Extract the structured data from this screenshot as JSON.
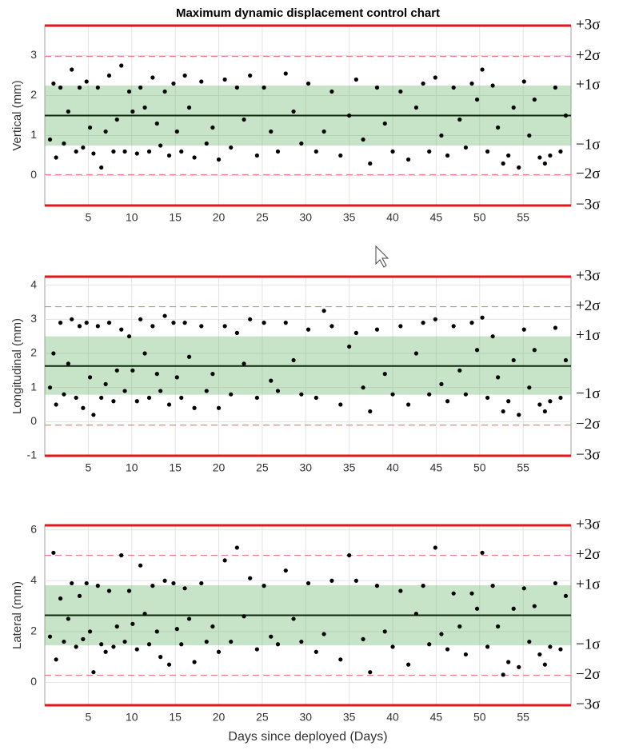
{
  "chart_data": [
    {
      "type": "scatter",
      "title": "Maximum dynamic displacement control chart",
      "ylabel": "Vertical (mm)",
      "color": "#000000",
      "xlim": [
        0,
        60.5
      ],
      "xticks": [
        5,
        10,
        15,
        20,
        25,
        30,
        35,
        40,
        45,
        50,
        55
      ],
      "ylim": [
        -0.75,
        3.75
      ],
      "yticks": [
        0,
        1,
        2,
        3
      ],
      "grid": true,
      "center": 1.5,
      "limits": [
        {
          "label": "+3σ",
          "value": 3.75
        },
        {
          "label": "+2σ",
          "value": 2.98
        },
        {
          "label": "+1σ",
          "value": 2.25
        },
        {
          "label": "−1σ",
          "value": 0.75
        },
        {
          "label": "−2σ",
          "value": 0.02
        },
        {
          "label": "−3σ",
          "value": -0.75
        }
      ],
      "x": [
        0.6,
        1,
        1.3,
        1.8,
        2.2,
        2.7,
        3.1,
        3.6,
        4,
        4.4,
        4.8,
        5.2,
        5.6,
        6.1,
        6.5,
        7,
        7.4,
        7.9,
        8.3,
        8.8,
        9.2,
        9.7,
        10.1,
        10.6,
        11,
        11.5,
        12,
        12.4,
        12.9,
        13.3,
        13.8,
        14.3,
        14.8,
        15.2,
        15.7,
        16.1,
        16.6,
        17.2,
        18,
        18.6,
        19.3,
        20,
        20.7,
        21.4,
        22.1,
        22.9,
        23.6,
        24.4,
        25.2,
        26,
        26.8,
        27.7,
        28.6,
        29.5,
        30.3,
        31.2,
        32.1,
        33,
        34,
        35,
        35.8,
        36.6,
        37.4,
        38.2,
        39.1,
        40,
        40.9,
        41.8,
        42.7,
        43.5,
        44.2,
        44.9,
        45.6,
        46.3,
        47,
        47.7,
        48.4,
        49.1,
        49.7,
        50.3,
        50.9,
        51.5,
        52.1,
        52.7,
        53.3,
        53.9,
        54.5,
        55.1,
        55.7,
        56.3,
        56.9,
        57.5,
        58.1,
        58.7,
        59.3,
        59.9
      ],
      "values": [
        0.9,
        2.3,
        0.45,
        2.2,
        0.8,
        1.6,
        2.65,
        0.6,
        2.2,
        0.7,
        2.35,
        1.2,
        0.55,
        2.2,
        0.2,
        1.1,
        2.5,
        0.6,
        1.4,
        2.75,
        0.6,
        2.1,
        1.6,
        0.55,
        2.2,
        1.7,
        0.6,
        2.45,
        1.3,
        0.75,
        2.1,
        0.5,
        2.3,
        1.1,
        0.6,
        2.5,
        1.7,
        0.45,
        2.35,
        0.8,
        1.2,
        0.4,
        2.4,
        0.7,
        2.2,
        1.4,
        2.5,
        0.5,
        2.2,
        1.1,
        0.6,
        2.55,
        1.6,
        0.8,
        2.3,
        0.6,
        1.1,
        2.1,
        0.5,
        1.5,
        2.4,
        0.9,
        0.3,
        2.2,
        1.3,
        0.6,
        2.1,
        0.4,
        1.7,
        2.3,
        0.6,
        2.45,
        1.0,
        0.5,
        2.2,
        1.4,
        0.7,
        2.3,
        1.9,
        2.65,
        0.6,
        2.25,
        1.2,
        0.3,
        0.5,
        1.7,
        0.2,
        2.35,
        1.0,
        1.9,
        0.45,
        0.3,
        0.5,
        2.2,
        0.6,
        1.5
      ]
    },
    {
      "type": "scatter",
      "ylabel": "Longitudinal (mm)",
      "color": "#000000",
      "xlim": [
        0,
        60.5
      ],
      "xticks": [
        5,
        10,
        15,
        20,
        25,
        30,
        35,
        40,
        45,
        50,
        55
      ],
      "ylim": [
        -1,
        4.25
      ],
      "yticks": [
        -1,
        0,
        1,
        2,
        3,
        4
      ],
      "grid": true,
      "center": 1.63,
      "limits": [
        {
          "label": "+3σ",
          "value": 4.25
        },
        {
          "label": "+2σ",
          "value": 3.37
        },
        {
          "label": "+1σ",
          "value": 2.5
        },
        {
          "label": "−1σ",
          "value": 0.79
        },
        {
          "label": "−2σ",
          "value": -0.1
        },
        {
          "label": "−3σ",
          "value": -1
        }
      ],
      "x": [
        0.6,
        1,
        1.3,
        1.8,
        2.2,
        2.7,
        3.1,
        3.6,
        4,
        4.4,
        4.8,
        5.2,
        5.6,
        6.1,
        6.5,
        7,
        7.4,
        7.9,
        8.3,
        8.8,
        9.2,
        9.7,
        10.1,
        10.6,
        11,
        11.5,
        12,
        12.4,
        12.9,
        13.3,
        13.8,
        14.3,
        14.8,
        15.2,
        15.7,
        16.1,
        16.6,
        17.2,
        18,
        18.6,
        19.3,
        20,
        20.7,
        21.4,
        22.1,
        22.9,
        23.6,
        24.4,
        25.2,
        26,
        26.8,
        27.7,
        28.6,
        29.5,
        30.3,
        31.2,
        32.1,
        33,
        34,
        35,
        35.8,
        36.6,
        37.4,
        38.2,
        39.1,
        40,
        40.9,
        41.8,
        42.7,
        43.5,
        44.2,
        44.9,
        45.6,
        46.3,
        47,
        47.7,
        48.4,
        49.1,
        49.7,
        50.3,
        50.9,
        51.5,
        52.1,
        52.7,
        53.3,
        53.9,
        54.5,
        55.1,
        55.7,
        56.3,
        56.9,
        57.5,
        58.1,
        58.7,
        59.3,
        59.9
      ],
      "values": [
        1.0,
        2.0,
        0.5,
        2.9,
        0.8,
        1.7,
        3.0,
        0.7,
        2.8,
        0.4,
        2.9,
        1.3,
        0.2,
        2.8,
        0.7,
        1.1,
        2.9,
        0.6,
        1.5,
        2.7,
        0.9,
        2.5,
        1.5,
        0.6,
        3.0,
        2.0,
        0.7,
        2.8,
        1.4,
        0.9,
        3.1,
        0.5,
        2.9,
        1.3,
        0.7,
        2.9,
        1.9,
        0.4,
        2.8,
        0.9,
        1.4,
        0.4,
        2.8,
        0.8,
        2.6,
        1.7,
        3.0,
        0.7,
        2.9,
        1.2,
        0.9,
        2.9,
        1.8,
        0.8,
        2.7,
        0.7,
        3.25,
        2.8,
        0.5,
        2.2,
        2.6,
        1.0,
        0.3,
        2.7,
        1.4,
        0.8,
        2.8,
        0.5,
        2.0,
        2.9,
        0.8,
        3.0,
        1.1,
        0.6,
        2.8,
        1.5,
        0.8,
        2.9,
        2.1,
        3.05,
        0.7,
        2.5,
        1.3,
        0.3,
        0.6,
        1.8,
        0.2,
        2.7,
        1.0,
        2.1,
        0.5,
        0.3,
        0.6,
        2.75,
        0.7,
        1.8
      ]
    },
    {
      "type": "scatter",
      "ylabel": "Lateral (mm)",
      "xlabel": "Days since deployed (Days)",
      "color": "#000000",
      "xlim": [
        0,
        60.5
      ],
      "xticks": [
        5,
        10,
        15,
        20,
        25,
        30,
        35,
        40,
        45,
        50,
        55
      ],
      "ylim": [
        -0.9,
        6.18
      ],
      "yticks": [
        0,
        2,
        4,
        6
      ],
      "grid": true,
      "center": 2.64,
      "limits": [
        {
          "label": "+3σ",
          "value": 6.18
        },
        {
          "label": "+2σ",
          "value": 5.0
        },
        {
          "label": "+1σ",
          "value": 3.82
        },
        {
          "label": "−1σ",
          "value": 1.46
        },
        {
          "label": "−2σ",
          "value": 0.28
        },
        {
          "label": "−3σ",
          "value": -0.9
        }
      ],
      "x": [
        0.6,
        1,
        1.3,
        1.8,
        2.2,
        2.7,
        3.1,
        3.6,
        4,
        4.4,
        4.8,
        5.2,
        5.6,
        6.1,
        6.5,
        7,
        7.4,
        7.9,
        8.3,
        8.8,
        9.2,
        9.7,
        10.1,
        10.6,
        11,
        11.5,
        12,
        12.4,
        12.9,
        13.3,
        13.8,
        14.3,
        14.8,
        15.2,
        15.7,
        16.1,
        16.6,
        17.2,
        18,
        18.6,
        19.3,
        20,
        20.7,
        21.4,
        22.1,
        22.9,
        23.6,
        24.4,
        25.2,
        26,
        26.8,
        27.7,
        28.6,
        29.5,
        30.3,
        31.2,
        32.1,
        33,
        34,
        35,
        35.8,
        36.6,
        37.4,
        38.2,
        39.1,
        40,
        40.9,
        41.8,
        42.7,
        43.5,
        44.2,
        44.9,
        45.6,
        46.3,
        47,
        47.7,
        48.4,
        49.1,
        49.7,
        50.3,
        50.9,
        51.5,
        52.1,
        52.7,
        53.3,
        53.9,
        54.5,
        55.1,
        55.7,
        56.3,
        56.9,
        57.5,
        58.1,
        58.7,
        59.3,
        59.9
      ],
      "values": [
        1.8,
        5.1,
        0.9,
        3.3,
        1.6,
        2.5,
        3.9,
        1.4,
        3.4,
        1.7,
        3.9,
        2.0,
        0.4,
        3.8,
        1.5,
        1.2,
        3.6,
        1.4,
        2.2,
        5.0,
        1.6,
        3.6,
        2.3,
        1.3,
        4.6,
        2.7,
        1.5,
        3.8,
        2.0,
        1.0,
        4.0,
        0.7,
        3.9,
        2.1,
        1.5,
        3.7,
        2.5,
        0.8,
        3.9,
        1.6,
        2.2,
        1.2,
        4.8,
        1.6,
        5.3,
        2.6,
        4.1,
        1.3,
        3.8,
        1.8,
        1.5,
        4.4,
        2.5,
        1.6,
        3.9,
        1.2,
        1.9,
        4.0,
        0.9,
        5.0,
        4.0,
        1.7,
        0.4,
        3.8,
        2.0,
        1.4,
        3.6,
        0.7,
        2.7,
        3.8,
        1.5,
        5.3,
        1.9,
        1.3,
        3.5,
        2.2,
        1.1,
        3.5,
        2.9,
        5.1,
        1.4,
        3.8,
        2.2,
        0.3,
        0.8,
        2.9,
        0.6,
        3.7,
        1.6,
        3.0,
        1.1,
        0.7,
        1.4,
        3.9,
        1.3,
        3.4
      ]
    }
  ]
}
